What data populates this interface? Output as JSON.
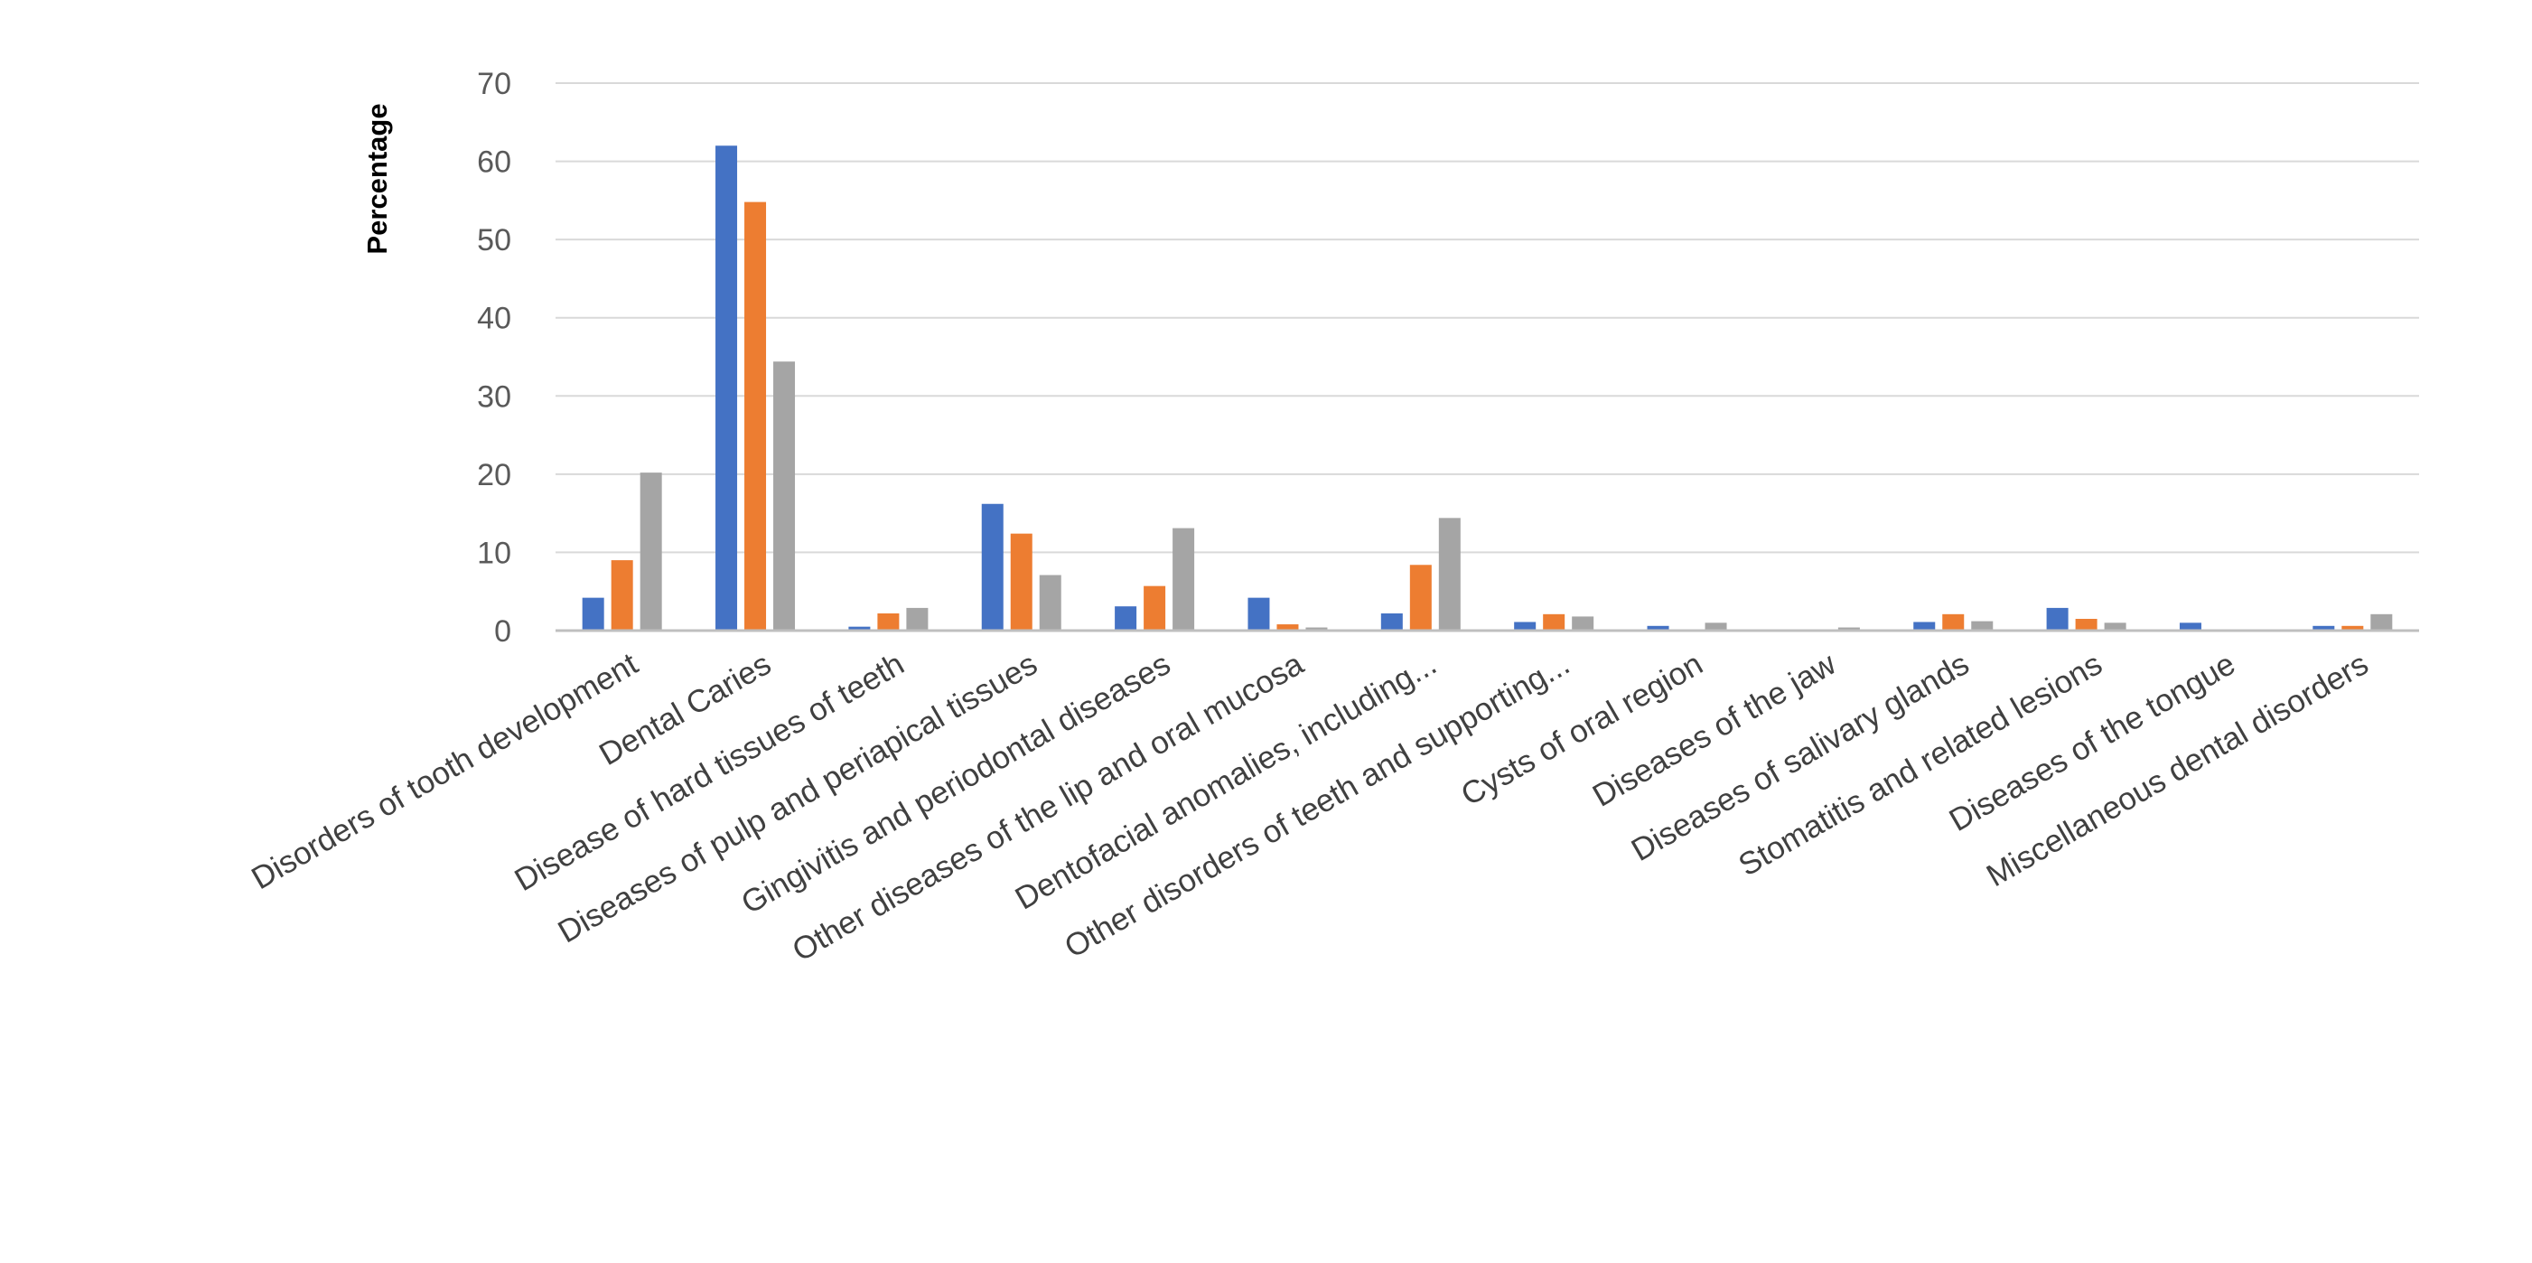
{
  "chart_data": {
    "type": "bar",
    "title": "",
    "xlabel": "",
    "ylabel": "Percentage",
    "ylim": [
      0,
      70
    ],
    "yticks": [
      0,
      10,
      20,
      30,
      40,
      50,
      60,
      70
    ],
    "grid": true,
    "categories": [
      "Disorders of tooth development",
      "Dental Caries",
      "Disease of hard tissues of teeth",
      "Diseases of pulp and periapical  tissues",
      "Gingivitis and periodontal diseases",
      "Other diseases of the lip and oral mucosa",
      "Dentofacial anomalies, including...",
      "Other disorders of teeth and supporting...",
      "Cysts of oral region",
      "Diseases of the jaw",
      "Diseases of salivary glands",
      "Stomatitis and related lesions",
      "Diseases of the tongue",
      "Miscellaneous dental disorders"
    ],
    "series": [
      {
        "color": "#4472C4",
        "values": [
          4.2,
          62,
          0.5,
          16.2,
          3.1,
          4.2,
          2.2,
          1.1,
          0.6,
          0,
          1.1,
          2.9,
          1.0,
          0.6
        ]
      },
      {
        "color": "#ED7D31",
        "values": [
          9.0,
          54.8,
          2.2,
          12.4,
          5.7,
          0.8,
          8.4,
          2.1,
          0,
          0,
          2.1,
          1.5,
          0,
          0.6
        ]
      },
      {
        "color": "#A5A5A5",
        "values": [
          20.2,
          34.4,
          2.9,
          7.1,
          13.1,
          0.4,
          14.4,
          1.8,
          1.0,
          0.4,
          1.2,
          1.0,
          0,
          2.1
        ]
      }
    ]
  }
}
